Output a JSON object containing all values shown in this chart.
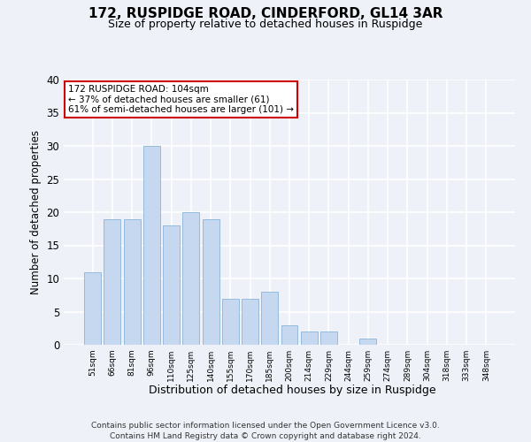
{
  "title": "172, RUSPIDGE ROAD, CINDERFORD, GL14 3AR",
  "subtitle": "Size of property relative to detached houses in Ruspidge",
  "xlabel": "Distribution of detached houses by size in Ruspidge",
  "ylabel": "Number of detached properties",
  "bar_color": "#c5d8f0",
  "bar_edge_color": "#8ab4d8",
  "background_color": "#eef2f8",
  "grid_color": "#ffffff",
  "categories": [
    "51sqm",
    "66sqm",
    "81sqm",
    "96sqm",
    "110sqm",
    "125sqm",
    "140sqm",
    "155sqm",
    "170sqm",
    "185sqm",
    "200sqm",
    "214sqm",
    "229sqm",
    "244sqm",
    "259sqm",
    "274sqm",
    "289sqm",
    "304sqm",
    "318sqm",
    "333sqm",
    "348sqm"
  ],
  "values": [
    11,
    19,
    19,
    30,
    18,
    20,
    19,
    7,
    7,
    8,
    3,
    2,
    2,
    0,
    1,
    0,
    0,
    0,
    0,
    0,
    0
  ],
  "ylim": [
    0,
    40
  ],
  "yticks": [
    0,
    5,
    10,
    15,
    20,
    25,
    30,
    35,
    40
  ],
  "annotation_text": "172 RUSPIDGE ROAD: 104sqm\n← 37% of detached houses are smaller (61)\n61% of semi-detached houses are larger (101) →",
  "annotation_box_color": "#ffffff",
  "annotation_box_edge_color": "#cc0000",
  "property_bar_index": 3,
  "footnote_line1": "Contains HM Land Registry data © Crown copyright and database right 2024.",
  "footnote_line2": "Contains public sector information licensed under the Open Government Licence v3.0."
}
